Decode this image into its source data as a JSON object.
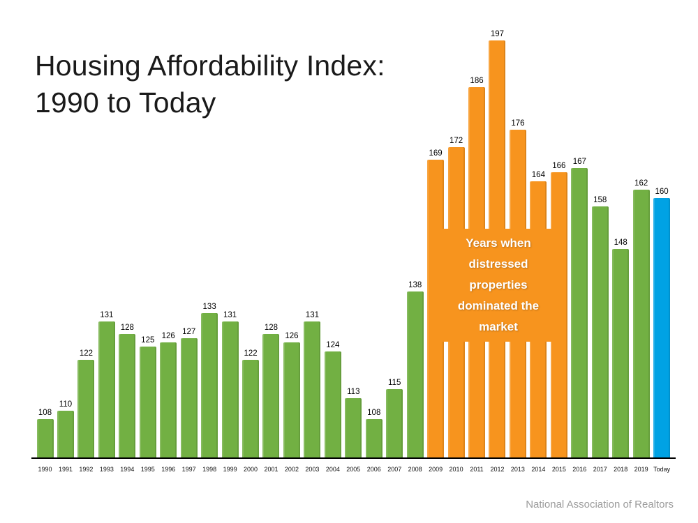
{
  "title": {
    "line1": "Housing Affordability Index:",
    "line2": "1990 to Today"
  },
  "annotation": "Years when distressed properties dominated the market",
  "source": "National Association of Realtors",
  "chart_data": {
    "type": "bar",
    "title": "Housing Affordability Index: 1990 to Today",
    "xlabel": "",
    "ylabel": "Housing Affordability Index",
    "ylim": [
      99,
      200
    ],
    "grid": false,
    "legend": "none",
    "value_labels": true,
    "categories": [
      "1990",
      "1991",
      "1992",
      "1993",
      "1994",
      "1995",
      "1996",
      "1997",
      "1998",
      "1999",
      "2000",
      "2001",
      "2002",
      "2003",
      "2004",
      "2005",
      "2006",
      "2007",
      "2008",
      "2009",
      "2010",
      "2011",
      "2012",
      "2013",
      "2014",
      "2015",
      "2016",
      "2017",
      "2018",
      "2019",
      "Today"
    ],
    "values": [
      108,
      110,
      122,
      131,
      128,
      125,
      126,
      127,
      133,
      131,
      122,
      128,
      126,
      131,
      124,
      113,
      108,
      115,
      138,
      169,
      172,
      186,
      197,
      176,
      164,
      166,
      167,
      158,
      148,
      162,
      160
    ],
    "bar_colors": [
      "green",
      "green",
      "green",
      "green",
      "green",
      "green",
      "green",
      "green",
      "green",
      "green",
      "green",
      "green",
      "green",
      "green",
      "green",
      "green",
      "green",
      "green",
      "green",
      "orange",
      "orange",
      "orange",
      "orange",
      "orange",
      "orange",
      "orange",
      "green",
      "green",
      "green",
      "green",
      "blue"
    ],
    "palette": {
      "green": "#72b043",
      "orange": "#f7941e",
      "blue": "#00a2e4"
    },
    "annotation": "Years when distressed properties dominated the market",
    "annotation_applies_to": [
      "2009",
      "2010",
      "2011",
      "2012",
      "2013",
      "2014",
      "2015"
    ]
  }
}
